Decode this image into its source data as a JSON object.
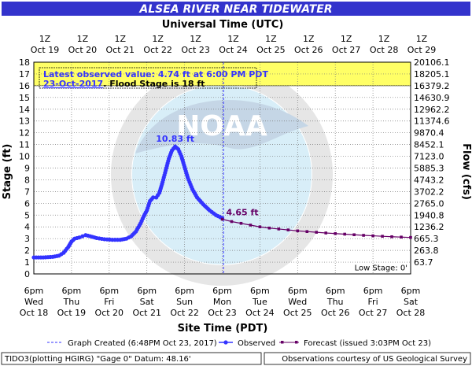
{
  "chart_data": {
    "type": "line",
    "title": "ALSEA RIVER NEAR TIDEWATER",
    "top_axis_title": "Universal Time (UTC)",
    "xlabel": "Site Time (PDT)",
    "ylabel": "Stage (ft)",
    "ylabel_right": "Flow (cfs)",
    "ylim": [
      0,
      18
    ],
    "xlim": [
      "2017-10-18 18:00",
      "2017-10-28 18:00"
    ],
    "y_ticks": [
      0,
      1,
      2,
      3,
      4,
      5,
      6,
      7,
      8,
      9,
      10,
      11,
      12,
      13,
      14,
      15,
      16,
      17,
      18
    ],
    "right_ticks": [
      {
        "stage": 1,
        "label": "63.7"
      },
      {
        "stage": 2,
        "label": "263.8"
      },
      {
        "stage": 3,
        "label": "665.3"
      },
      {
        "stage": 4,
        "label": "1236.2"
      },
      {
        "stage": 5,
        "label": "1940.8"
      },
      {
        "stage": 6,
        "label": "2765.0"
      },
      {
        "stage": 7,
        "label": "3702.2"
      },
      {
        "stage": 8,
        "label": "4743.2"
      },
      {
        "stage": 9,
        "label": "5885.3"
      },
      {
        "stage": 10,
        "label": "7123.0"
      },
      {
        "stage": 11,
        "label": "8452.1"
      },
      {
        "stage": 12,
        "label": "9870.4"
      },
      {
        "stage": 13,
        "label": "11374.6"
      },
      {
        "stage": 14,
        "label": "12962.2"
      },
      {
        "stage": 15,
        "label": "14630.9"
      },
      {
        "stage": 16,
        "label": "16379.2"
      },
      {
        "stage": 17,
        "label": "18205.1"
      },
      {
        "stage": 18,
        "label": "20106.1"
      }
    ],
    "bottom_ticks": [
      {
        "time": "6pm",
        "day": "Wed",
        "date": "Oct 18"
      },
      {
        "time": "6pm",
        "day": "Thu",
        "date": "Oct 19"
      },
      {
        "time": "6pm",
        "day": "Fri",
        "date": "Oct 20"
      },
      {
        "time": "6pm",
        "day": "Sat",
        "date": "Oct 21"
      },
      {
        "time": "6pm",
        "day": "Sun",
        "date": "Oct 22"
      },
      {
        "time": "6pm",
        "day": "Mon",
        "date": "Oct 23"
      },
      {
        "time": "6pm",
        "day": "Tue",
        "date": "Oct 24"
      },
      {
        "time": "6pm",
        "day": "Wed",
        "date": "Oct 25"
      },
      {
        "time": "6pm",
        "day": "Thu",
        "date": "Oct 26"
      },
      {
        "time": "6pm",
        "day": "Fri",
        "date": "Oct 27"
      },
      {
        "time": "6pm",
        "day": "Sat",
        "date": "Oct 28"
      }
    ],
    "top_ticks": [
      {
        "time": "1Z",
        "date": "Oct 19"
      },
      {
        "time": "1Z",
        "date": "Oct 20"
      },
      {
        "time": "1Z",
        "date": "Oct 21"
      },
      {
        "time": "1Z",
        "date": "Oct 22"
      },
      {
        "time": "1Z",
        "date": "Oct 23"
      },
      {
        "time": "1Z",
        "date": "Oct 24"
      },
      {
        "time": "1Z",
        "date": "Oct 25"
      },
      {
        "time": "1Z",
        "date": "Oct 26"
      },
      {
        "time": "1Z",
        "date": "Oct 27"
      },
      {
        "time": "1Z",
        "date": "Oct 28"
      },
      {
        "time": "1Z",
        "date": "Oct 29"
      }
    ],
    "flood_stage": 18,
    "flood_band": [
      16,
      18
    ],
    "graph_created": "2017-10-23 18:48",
    "series": [
      {
        "name": "Observed",
        "color": "#3333ff",
        "marker": "circle",
        "points": [
          [
            "2017-10-18 18:00",
            1.4
          ],
          [
            "2017-10-19 00:00",
            1.4
          ],
          [
            "2017-10-19 06:00",
            1.45
          ],
          [
            "2017-10-19 10:00",
            1.55
          ],
          [
            "2017-10-19 13:00",
            1.8
          ],
          [
            "2017-10-19 16:00",
            2.3
          ],
          [
            "2017-10-19 18:00",
            2.75
          ],
          [
            "2017-10-19 20:00",
            3.0
          ],
          [
            "2017-10-19 23:00",
            3.1
          ],
          [
            "2017-10-20 01:00",
            3.2
          ],
          [
            "2017-10-20 03:00",
            3.3
          ],
          [
            "2017-10-20 06:00",
            3.2
          ],
          [
            "2017-10-20 10:00",
            3.05
          ],
          [
            "2017-10-20 15:00",
            2.95
          ],
          [
            "2017-10-20 20:00",
            2.9
          ],
          [
            "2017-10-21 01:00",
            2.9
          ],
          [
            "2017-10-21 05:00",
            3.0
          ],
          [
            "2017-10-21 08:00",
            3.2
          ],
          [
            "2017-10-21 11:00",
            3.6
          ],
          [
            "2017-10-21 14:00",
            4.3
          ],
          [
            "2017-10-21 16:00",
            4.9
          ],
          [
            "2017-10-21 18:00",
            5.4
          ],
          [
            "2017-10-21 20:00",
            6.2
          ],
          [
            "2017-10-21 22:00",
            6.5
          ],
          [
            "2017-10-22 00:00",
            6.5
          ],
          [
            "2017-10-22 02:00",
            6.9
          ],
          [
            "2017-10-22 04:00",
            7.8
          ],
          [
            "2017-10-22 06:00",
            8.8
          ],
          [
            "2017-10-22 08:00",
            9.8
          ],
          [
            "2017-10-22 10:00",
            10.5
          ],
          [
            "2017-10-22 12:00",
            10.83
          ],
          [
            "2017-10-22 14:00",
            10.6
          ],
          [
            "2017-10-22 16:00",
            10.0
          ],
          [
            "2017-10-22 18:00",
            9.1
          ],
          [
            "2017-10-22 20:00",
            8.2
          ],
          [
            "2017-10-22 23:00",
            7.2
          ],
          [
            "2017-10-23 02:00",
            6.5
          ],
          [
            "2017-10-23 06:00",
            5.9
          ],
          [
            "2017-10-23 10:00",
            5.4
          ],
          [
            "2017-10-23 14:00",
            5.0
          ],
          [
            "2017-10-23 18:00",
            4.74
          ]
        ]
      },
      {
        "name": "Forecast",
        "color": "#660066",
        "marker": "square",
        "points": [
          [
            "2017-10-23 18:00",
            4.65
          ],
          [
            "2017-10-24 00:00",
            4.45
          ],
          [
            "2017-10-24 06:00",
            4.3
          ],
          [
            "2017-10-24 12:00",
            4.15
          ],
          [
            "2017-10-24 18:00",
            4.0
          ],
          [
            "2017-10-25 00:00",
            3.9
          ],
          [
            "2017-10-25 06:00",
            3.82
          ],
          [
            "2017-10-25 12:00",
            3.74
          ],
          [
            "2017-10-25 18:00",
            3.66
          ],
          [
            "2017-10-26 00:00",
            3.6
          ],
          [
            "2017-10-26 06:00",
            3.54
          ],
          [
            "2017-10-26 12:00",
            3.48
          ],
          [
            "2017-10-26 18:00",
            3.43
          ],
          [
            "2017-10-27 00:00",
            3.38
          ],
          [
            "2017-10-27 06:00",
            3.33
          ],
          [
            "2017-10-27 12:00",
            3.28
          ],
          [
            "2017-10-27 18:00",
            3.24
          ],
          [
            "2017-10-28 00:00",
            3.2
          ],
          [
            "2017-10-28 06:00",
            3.16
          ],
          [
            "2017-10-28 12:00",
            3.13
          ],
          [
            "2017-10-28 18:00",
            3.1
          ]
        ]
      }
    ],
    "annotations": {
      "peak_label": "10.83 ft",
      "forecast_start_label": "4.65 ft",
      "latest_line1": "Latest observed value: 4.74 ft at 6:00 PM PDT",
      "latest_line2_date": "23-Oct-2017",
      "latest_line2_rest": ". Flood Stage is 18 ft",
      "low_stage": "Low Stage: 0'"
    },
    "legend": {
      "position": "bottom",
      "graph_created": "Graph Created (6:48PM Oct 23, 2017)",
      "observed": "Observed",
      "forecast": "Forecast (issued 3:03PM Oct 23)"
    },
    "footer": {
      "left": "TIDO3(plotting HGIRG) \"Gage 0\" Datum: 48.16'",
      "right": "Observations courtesy of US Geological Survey"
    },
    "colors": {
      "title_bar": "#3333cc",
      "flood_band": "#ffff66",
      "observed": "#3333ff",
      "forecast": "#660066",
      "grid": "#777777",
      "peak_label": "#3333ff",
      "forecast_label": "#660066"
    },
    "grid": true
  }
}
